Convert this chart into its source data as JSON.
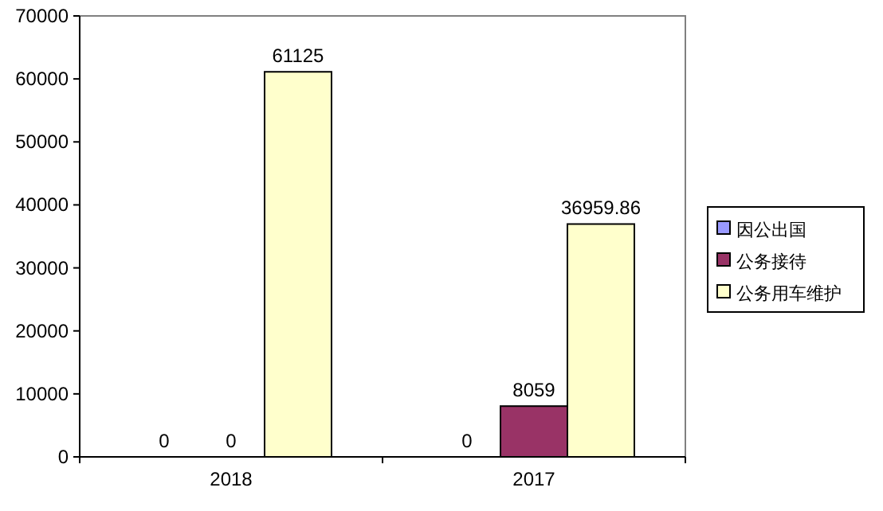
{
  "chart_data": {
    "type": "bar",
    "categories": [
      "2018",
      "2017"
    ],
    "series": [
      {
        "name": "因公出国",
        "color": "#9999ff",
        "values": [
          0,
          0
        ]
      },
      {
        "name": "公务接待",
        "color": "#993366",
        "values": [
          0,
          8059
        ]
      },
      {
        "name": "公务用车维护",
        "color": "#ffffcc",
        "values": [
          61125,
          36959.86
        ]
      }
    ],
    "value_labels": [
      [
        "0",
        "0"
      ],
      [
        "0",
        "8059"
      ],
      [
        "61125",
        "36959.86"
      ]
    ],
    "ylim": [
      0,
      70000
    ],
    "yticks": [
      0,
      10000,
      20000,
      30000,
      40000,
      50000,
      60000,
      70000
    ],
    "grid": false,
    "legend": "right"
  }
}
